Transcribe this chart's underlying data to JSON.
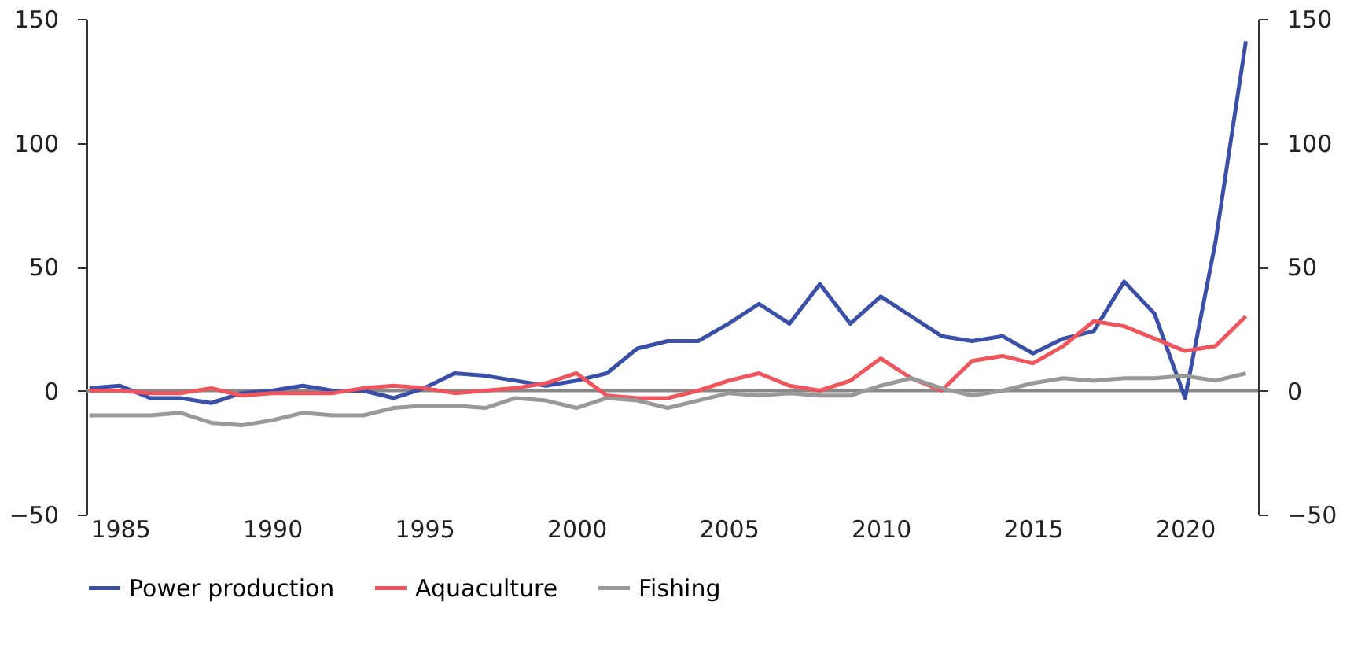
{
  "chart_data": {
    "type": "line",
    "x": [
      1984,
      1985,
      1986,
      1987,
      1988,
      1989,
      1990,
      1991,
      1992,
      1993,
      1994,
      1995,
      1996,
      1997,
      1998,
      1999,
      2000,
      2001,
      2002,
      2003,
      2004,
      2005,
      2006,
      2007,
      2008,
      2009,
      2010,
      2011,
      2012,
      2013,
      2014,
      2015,
      2016,
      2017,
      2018,
      2019,
      2020,
      2021,
      2022
    ],
    "series": [
      {
        "name": "Power production",
        "color": "#3a4fa8",
        "values": [
          1,
          2,
          -3,
          -3,
          -5,
          -1,
          0,
          2,
          0,
          0,
          -3,
          1,
          7,
          6,
          4,
          2,
          4,
          7,
          17,
          20,
          20,
          27,
          35,
          27,
          43,
          27,
          38,
          30,
          22,
          20,
          22,
          15,
          21,
          24,
          44,
          31,
          -3,
          60,
          141
        ]
      },
      {
        "name": "Aquaculture",
        "color": "#f0545c",
        "values": [
          0,
          0,
          -1,
          -1,
          1,
          -2,
          -1,
          -1,
          -1,
          1,
          2,
          1,
          -1,
          0,
          1,
          3,
          7,
          -2,
          -3,
          -3,
          0,
          4,
          7,
          2,
          0,
          4,
          13,
          5,
          0,
          12,
          14,
          11,
          18,
          28,
          26,
          21,
          16,
          18,
          30
        ]
      },
      {
        "name": "Fishing",
        "color": "#999999",
        "values": [
          -10,
          -10,
          -10,
          -9,
          -13,
          -14,
          -12,
          -9,
          -10,
          -10,
          -7,
          -6,
          -6,
          -7,
          -3,
          -4,
          -7,
          -3,
          -4,
          -7,
          -4,
          -1,
          -2,
          -1,
          -2,
          -2,
          2,
          5,
          1,
          -2,
          0,
          3,
          5,
          4,
          5,
          5,
          6,
          4,
          7
        ]
      }
    ],
    "xlim": [
      1983.9,
      2022.4
    ],
    "xticks": [
      1985,
      1990,
      1995,
      2000,
      2005,
      2010,
      2015,
      2020
    ],
    "ylim": [
      -50,
      150
    ],
    "yticks": [
      -50,
      0,
      50,
      100,
      150
    ],
    "y2lim": [
      -50,
      150
    ],
    "y2ticks": [
      -50,
      0,
      50,
      100,
      150
    ],
    "ref_lines": [
      {
        "axis": "y",
        "value": 0,
        "color": "#888888"
      }
    ],
    "grid": false,
    "legend": "bottom",
    "line_style": "solid",
    "marker": "none"
  }
}
